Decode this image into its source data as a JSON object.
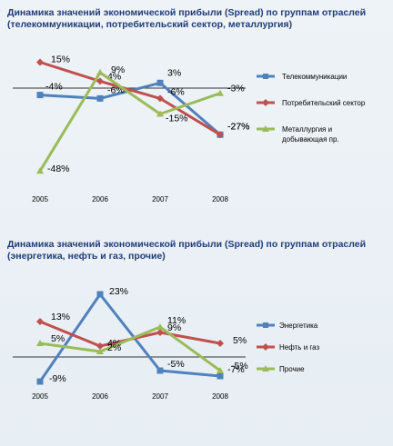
{
  "chart_data": [
    {
      "type": "line",
      "title": "Динамика значений экономической прибыли (Spread) по группам отраслей (телекоммуникации, потребительский сектор, металлургия)",
      "categories": [
        "2005",
        "2006",
        "2007",
        "2008"
      ],
      "ylabel": "",
      "xlabel": "",
      "legend": "right",
      "series": [
        {
          "name": "Телекоммуникации",
          "values": [
            -4,
            -6,
            3,
            -27
          ],
          "labels": [
            "-4%",
            "-6%",
            "3%",
            "-27%"
          ],
          "color": "#4f81bd"
        },
        {
          "name": "Потребительский сектор",
          "values": [
            15,
            4,
            -6,
            -27
          ],
          "labels": [
            "15%",
            "4%",
            "-6%",
            "-27%"
          ],
          "color": "#c0504d"
        },
        {
          "name": "Металлургия и добывающая пр.",
          "values": [
            -48,
            9,
            -15,
            -3
          ],
          "labels": [
            "-48%",
            "9%",
            "-15%",
            "-3%"
          ],
          "color": "#9bbb59"
        }
      ]
    },
    {
      "type": "line",
      "title": "Динамика значений экономической прибыли (Spread) по группам отраслей (энергетика, нефть и газ, прочие)",
      "categories": [
        "2005",
        "2006",
        "2007",
        "2008"
      ],
      "ylabel": "",
      "xlabel": "",
      "legend": "right",
      "series": [
        {
          "name": "Энергетика",
          "values": [
            -9,
            23,
            -5,
            -7
          ],
          "labels": [
            "-9%",
            "23%",
            "-5%",
            "-7%"
          ],
          "color": "#4f81bd"
        },
        {
          "name": "Нефть и газ",
          "values": [
            13,
            4,
            9,
            5
          ],
          "labels": [
            "13%",
            "4%",
            "9%",
            "5%"
          ],
          "color": "#c0504d"
        },
        {
          "name": "Прочие",
          "values": [
            5,
            2,
            11,
            -5
          ],
          "labels": [
            "5%",
            "2%",
            "11%",
            "-5%"
          ],
          "color": "#9bbb59"
        }
      ]
    }
  ]
}
